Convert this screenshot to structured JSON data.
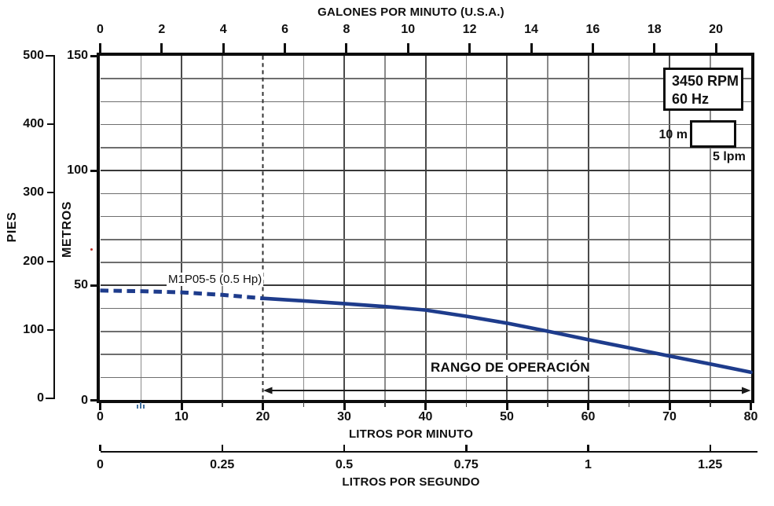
{
  "top_axis": {
    "title": "GALONES POR MINUTO (U.S.A.)",
    "ticks": [
      0,
      2,
      4,
      6,
      8,
      10,
      12,
      14,
      16,
      18,
      20
    ]
  },
  "left_axis_pies": {
    "label": "PIES",
    "ticks": [
      500,
      400,
      300,
      200,
      100,
      0
    ]
  },
  "left_axis_metros": {
    "label": "METROS",
    "ticks": [
      150,
      100,
      50,
      0
    ]
  },
  "bottom_axis_lpm": {
    "title": "LITROS POR MINUTO",
    "ticks": [
      0,
      10,
      20,
      30,
      40,
      50,
      60,
      70,
      80
    ]
  },
  "bottom_axis_lps": {
    "title": "LITROS POR SEGUNDO",
    "ticks": [
      "0",
      "0.25",
      "0.5",
      "0.75",
      "1",
      "1.25"
    ]
  },
  "info_box": {
    "line1": "3450 RPM",
    "line2": "60 Hz"
  },
  "scale_key": {
    "vertical": "10 m",
    "horizontal": "5 lpm"
  },
  "curve": {
    "label": "M1P05-5 (0.5 Hp)"
  },
  "operating_range": {
    "label": "RANGO DE OPERACIÓN",
    "from_lpm": 20,
    "to_lpm": 80
  },
  "chart_data": {
    "type": "line",
    "title": "",
    "x_axis": {
      "label": "LITROS POR MINUTO",
      "range": [
        0,
        80
      ],
      "grid_step": 5,
      "major_step": 10
    },
    "x_axis_secondary": [
      {
        "label": "GALONES POR MINUTO (U.S.A.)",
        "range": [
          0,
          21.1
        ],
        "tick_step": 2
      },
      {
        "label": "LITROS POR SEGUNDO",
        "range": [
          0,
          1.33
        ],
        "tick_step": 0.25
      }
    ],
    "y_axis": {
      "label": "METROS",
      "range": [
        0,
        150
      ],
      "grid_step": 10,
      "major_step": 50
    },
    "y_axis_secondary": {
      "label": "PIES",
      "range": [
        0,
        500
      ],
      "tick_step": 100
    },
    "grid": true,
    "legend_position": "none",
    "series": [
      {
        "name": "M1P05-5 (0.5 Hp)",
        "color": "#1e3c8c",
        "dashed_below_lpm": 20,
        "points_lpm_m": [
          [
            0,
            47.8
          ],
          [
            5,
            47.5
          ],
          [
            10,
            47.0
          ],
          [
            15,
            45.9
          ],
          [
            20,
            44.4
          ],
          [
            25,
            43.3
          ],
          [
            30,
            42.1
          ],
          [
            35,
            40.8
          ],
          [
            40,
            39.3
          ],
          [
            45,
            36.6
          ],
          [
            50,
            33.6
          ],
          [
            55,
            30.1
          ],
          [
            60,
            26.4
          ],
          [
            65,
            22.9
          ],
          [
            70,
            19.3
          ],
          [
            75,
            15.8
          ],
          [
            80,
            12.2
          ]
        ]
      }
    ],
    "annotations": {
      "rpm": "3450 RPM",
      "frequency": "60 Hz",
      "operating_range_label": "RANGO DE OPERACIÓN",
      "operating_range_lpm": [
        20,
        80
      ],
      "min_flow_dashed_line_lpm": 20,
      "scale_key": {
        "height": "10 m",
        "width": "5 lpm"
      }
    }
  },
  "colors": {
    "curve": "#1e3c8c",
    "frame": "#0d0d0d",
    "grid_minor_h": "#6e6e6e",
    "grid_major_h": "#383838",
    "grid_minor_v": "#8a8a8a",
    "grid_major_v": "#4a4a4a",
    "dashed_line": "#333333",
    "artifact_blue": "#44719f",
    "artifact_red": "#c03026"
  }
}
